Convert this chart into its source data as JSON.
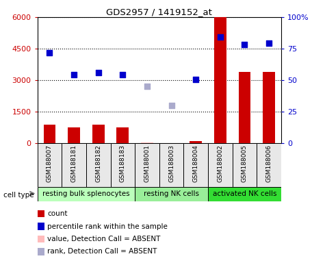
{
  "title": "GDS2957 / 1419152_at",
  "samples": [
    "GSM188007",
    "GSM188181",
    "GSM188182",
    "GSM188183",
    "GSM188001",
    "GSM188003",
    "GSM188004",
    "GSM188002",
    "GSM188005",
    "GSM188006"
  ],
  "cell_groups": [
    {
      "label": "resting bulk splenocytes",
      "indices": [
        0,
        1,
        2,
        3
      ],
      "color": "#bbffbb"
    },
    {
      "label": "resting NK cells",
      "indices": [
        4,
        5,
        6
      ],
      "color": "#99ee99"
    },
    {
      "label": "activated NK cells",
      "indices": [
        7,
        8,
        9
      ],
      "color": "#33dd33"
    }
  ],
  "count_values": [
    900,
    750,
    900,
    750,
    50,
    20,
    120,
    6000,
    3400,
    3400
  ],
  "count_absent": [
    false,
    false,
    false,
    false,
    true,
    true,
    false,
    false,
    false,
    false
  ],
  "percentile_values": [
    4300,
    3250,
    3350,
    3250,
    null,
    null,
    3050,
    5050,
    4700,
    4750
  ],
  "percentile_absent": [
    false,
    false,
    false,
    false,
    false,
    false,
    false,
    false,
    false,
    false
  ],
  "rank_absent_values": [
    null,
    null,
    null,
    null,
    2700,
    1800,
    null,
    null,
    null,
    null
  ],
  "ylim_left": [
    0,
    6000
  ],
  "ylim_right": [
    0,
    100
  ],
  "yticks_left": [
    0,
    1500,
    3000,
    4500,
    6000
  ],
  "ytick_labels_left": [
    "0",
    "1500",
    "3000",
    "4500",
    "6000"
  ],
  "yticks_right": [
    0,
    25,
    50,
    75,
    100
  ],
  "ytick_labels_right": [
    "0",
    "25",
    "50",
    "75",
    "100%"
  ],
  "bar_width": 0.5,
  "count_color": "#cc0000",
  "count_absent_color": "#ffbbbb",
  "percentile_color": "#0000cc",
  "percentile_absent_color": "#aaaacc",
  "bg_color": "#e8e8e8",
  "grid_color": "#000000",
  "white": "#ffffff"
}
